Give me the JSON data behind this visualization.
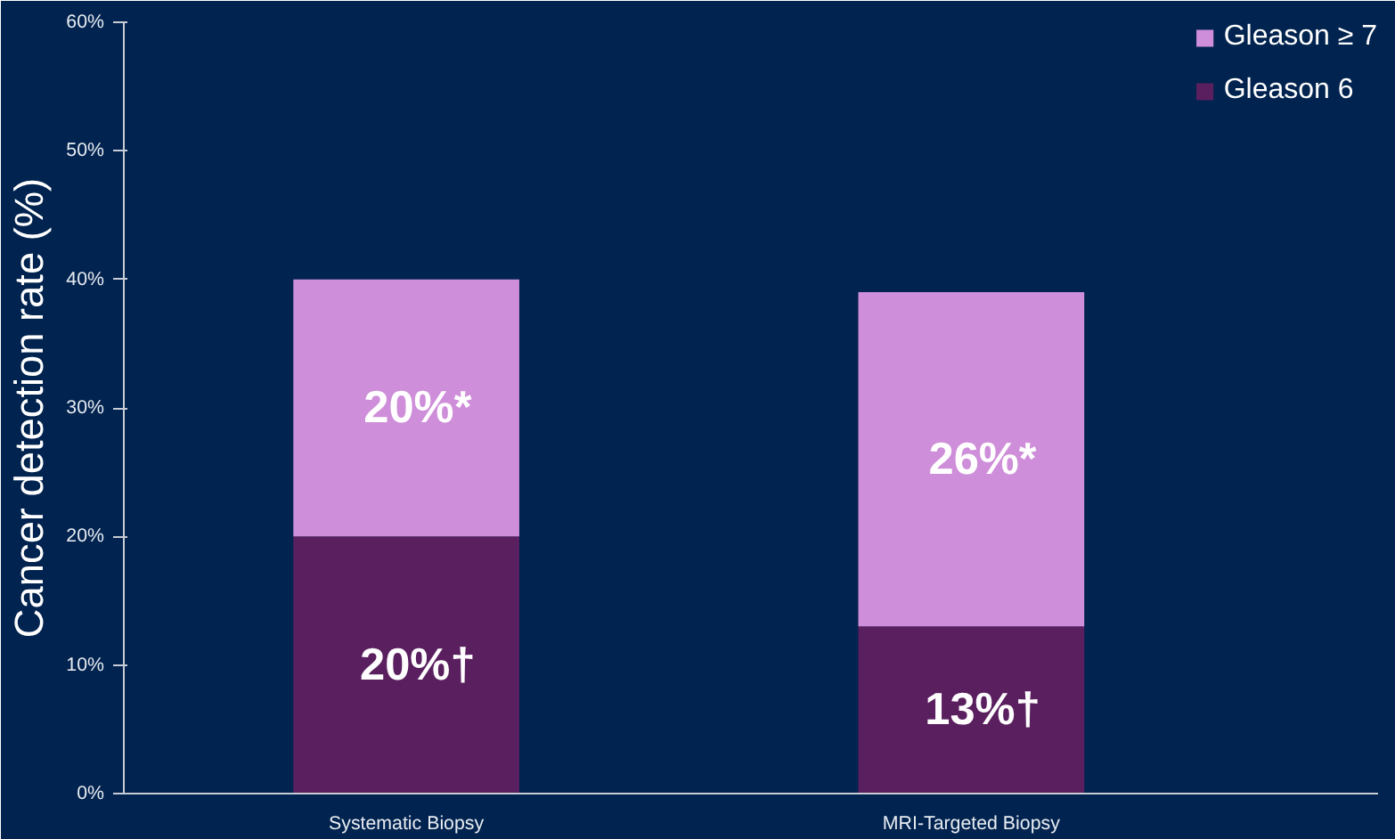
{
  "chart_data": {
    "type": "bar",
    "stacked": true,
    "ylabel": "Cancer detection rate (%)",
    "categories": [
      "Systematic Biopsy",
      "MRI-Targeted Biopsy"
    ],
    "series": [
      {
        "name": "Gleason 6",
        "color": "#5a1f5f",
        "values": [
          20,
          13
        ],
        "value_labels": [
          "20%†",
          "13%†"
        ]
      },
      {
        "name": "Gleason ≥ 7",
        "color": "#ce8ed9",
        "values": [
          20,
          26
        ],
        "value_labels": [
          "20%*",
          "26%*"
        ]
      }
    ],
    "ylim": [
      0,
      60
    ],
    "yticks": [
      {
        "value": 0,
        "label": "0%"
      },
      {
        "value": 10,
        "label": "10%"
      },
      {
        "value": 20,
        "label": "20%"
      },
      {
        "value": 30,
        "label": "30%"
      },
      {
        "value": 40,
        "label": "40%"
      },
      {
        "value": 50,
        "label": "50%"
      },
      {
        "value": 60,
        "label": "60%"
      }
    ],
    "grid": false,
    "legend": "top right"
  }
}
